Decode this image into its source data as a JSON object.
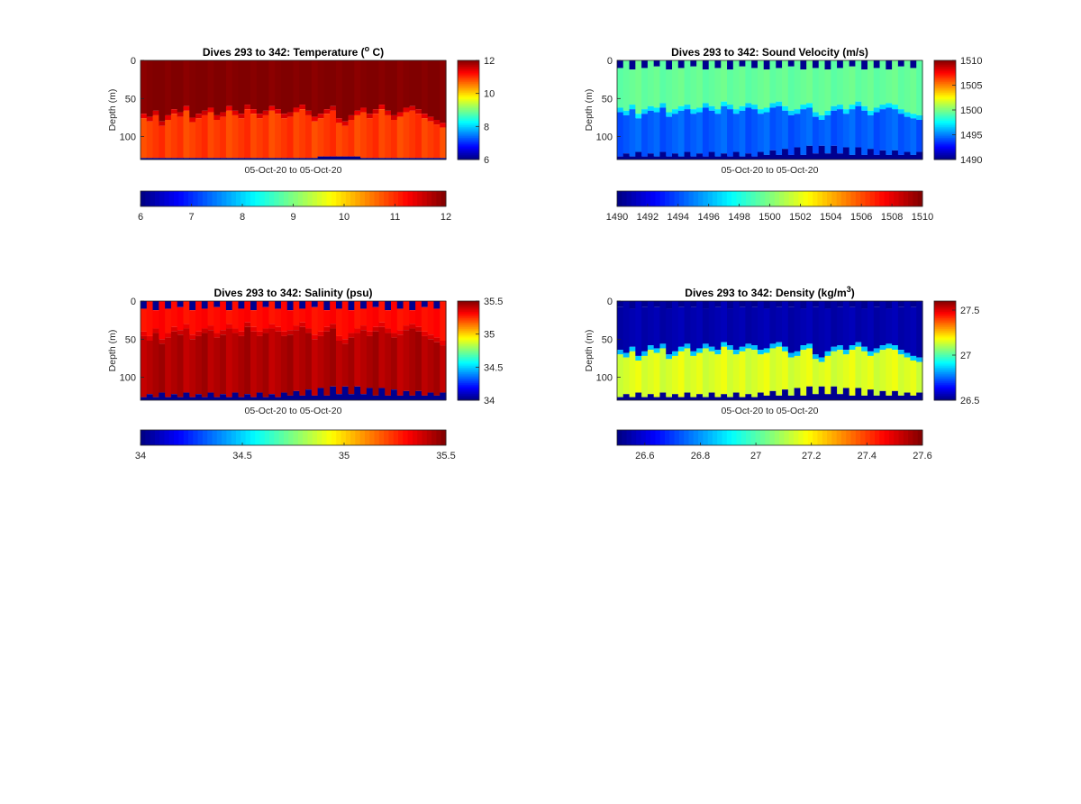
{
  "chart_data": [
    {
      "type": "heatmap",
      "title": {
        "text": "Dives 293 to 342: Temperature (",
        "sup": "o",
        "tail": " C)"
      },
      "xlabel": "05-Oct-20 to 05-Oct-20",
      "ylabel": "Depth (m)",
      "ylim": [
        0,
        130
      ],
      "yticks": [
        "0",
        "50",
        "100"
      ],
      "clim": [
        6,
        12
      ],
      "colormap": "jet",
      "side_colorbar_ticks": [
        {
          "value": 12,
          "label": "12"
        },
        {
          "value": 10,
          "label": "10"
        },
        {
          "value": 8,
          "label": "8"
        },
        {
          "value": 6,
          "label": "6"
        }
      ],
      "bottom_colorbar_ticks": [
        {
          "value": 6,
          "label": "6"
        },
        {
          "value": 7,
          "label": "7"
        },
        {
          "value": 8,
          "label": "8"
        },
        {
          "value": 9,
          "label": "9"
        },
        {
          "value": 10,
          "label": "10"
        },
        {
          "value": 11,
          "label": "11"
        },
        {
          "value": 12,
          "label": "12"
        }
      ],
      "n_dives": 50,
      "layers": {
        "upper_value": 12.0,
        "lower_value": 10.9,
        "interface_depth": [
          70,
          74,
          66,
          80,
          72,
          64,
          68,
          60,
          75,
          70,
          66,
          62,
          72,
          68,
          60,
          66,
          70,
          58,
          64,
          70,
          66,
          60,
          64,
          70,
          68,
          62,
          58,
          66,
          74,
          70,
          64,
          60,
          76,
          80,
          72,
          66,
          62,
          70,
          64,
          58,
          66,
          72,
          68,
          62,
          60,
          64,
          70,
          74,
          78,
          82
        ]
      },
      "bottom_depth": [
        128,
        128,
        128,
        128,
        128,
        128,
        128,
        128,
        128,
        128,
        128,
        128,
        128,
        128,
        128,
        128,
        128,
        128,
        128,
        128,
        128,
        128,
        128,
        128,
        128,
        128,
        128,
        128,
        128,
        126,
        126,
        126,
        126,
        126,
        126,
        126,
        128,
        128,
        128,
        128,
        128,
        128,
        128,
        128,
        128,
        128,
        128,
        128,
        128,
        128
      ]
    },
    {
      "type": "heatmap",
      "title": {
        "text": "Dives 293 to 342: Sound Velocity (m/s)"
      },
      "xlabel": "05-Oct-20 to 05-Oct-20",
      "ylabel": "Depth (m)",
      "ylim": [
        0,
        130
      ],
      "yticks": [
        "0",
        "50",
        "100"
      ],
      "clim": [
        1490,
        1510
      ],
      "colormap": "jet",
      "side_colorbar_ticks": [
        {
          "value": 1510,
          "label": "1510"
        },
        {
          "value": 1505,
          "label": "1505"
        },
        {
          "value": 1500,
          "label": "1500"
        },
        {
          "value": 1495,
          "label": "1495"
        },
        {
          "value": 1490,
          "label": "1490"
        }
      ],
      "bottom_colorbar_ticks": [
        {
          "value": 1490,
          "label": "1490"
        },
        {
          "value": 1492,
          "label": "1492"
        },
        {
          "value": 1494,
          "label": "1494"
        },
        {
          "value": 1496,
          "label": "1496"
        },
        {
          "value": 1498,
          "label": "1498"
        },
        {
          "value": 1500,
          "label": "1500"
        },
        {
          "value": 1502,
          "label": "1502"
        },
        {
          "value": 1504,
          "label": "1504"
        },
        {
          "value": 1506,
          "label": "1506"
        },
        {
          "value": 1508,
          "label": "1508"
        },
        {
          "value": 1510,
          "label": "1510"
        }
      ],
      "n_dives": 50,
      "layers": {
        "upper_value": 1499.5,
        "lower_value": 1494.3,
        "interface_depth": [
          62,
          66,
          58,
          70,
          64,
          60,
          62,
          56,
          68,
          64,
          60,
          58,
          64,
          62,
          56,
          60,
          64,
          54,
          58,
          64,
          60,
          56,
          58,
          64,
          62,
          56,
          54,
          60,
          66,
          64,
          58,
          56,
          68,
          72,
          66,
          60,
          58,
          64,
          58,
          54,
          60,
          66,
          62,
          58,
          56,
          58,
          64,
          68,
          70,
          72
        ]
      },
      "surface_gap": [
        10,
        0,
        12,
        0,
        10,
        0,
        8,
        0,
        12,
        0,
        10,
        0,
        8,
        0,
        12,
        0,
        10,
        0,
        12,
        0,
        8,
        0,
        10,
        0,
        12,
        0,
        10,
        0,
        8,
        0,
        12,
        0,
        10,
        0,
        12,
        0,
        10,
        0,
        8,
        0,
        12,
        0,
        10,
        0,
        12,
        0,
        8,
        0,
        10,
        0
      ],
      "bottom_depth": [
        126,
        122,
        126,
        120,
        126,
        122,
        126,
        120,
        126,
        122,
        126,
        120,
        126,
        122,
        126,
        120,
        126,
        122,
        126,
        120,
        126,
        122,
        126,
        120,
        124,
        118,
        124,
        116,
        124,
        114,
        124,
        112,
        122,
        112,
        122,
        112,
        122,
        114,
        124,
        114,
        124,
        116,
        124,
        118,
        124,
        118,
        124,
        120,
        124,
        120
      ]
    },
    {
      "type": "heatmap",
      "title": {
        "text": "Dives 293 to 342: Salinity (psu)"
      },
      "xlabel": "05-Oct-20 to 05-Oct-20",
      "ylabel": "Depth (m)",
      "ylim": [
        0,
        130
      ],
      "yticks": [
        "0",
        "50",
        "100"
      ],
      "clim": [
        34,
        35.5
      ],
      "colormap": "jet",
      "side_colorbar_ticks": [
        {
          "value": 35.5,
          "label": "35.5"
        },
        {
          "value": 35,
          "label": "35"
        },
        {
          "value": 34.5,
          "label": "34.5"
        },
        {
          "value": 34,
          "label": "34"
        }
      ],
      "bottom_colorbar_ticks": [
        {
          "value": 34,
          "label": "34"
        },
        {
          "value": 34.5,
          "label": "34.5"
        },
        {
          "value": 35,
          "label": "35"
        },
        {
          "value": 35.5,
          "label": "35.5"
        }
      ],
      "n_dives": 50,
      "layers": {
        "upper_value": 35.3,
        "lower_value": 35.43,
        "interface_depth": [
          40,
          46,
          36,
          50,
          42,
          34,
          38,
          30,
          44,
          40,
          36,
          32,
          42,
          38,
          30,
          36,
          40,
          28,
          34,
          40,
          36,
          30,
          34,
          40,
          38,
          32,
          28,
          36,
          44,
          40,
          34,
          30,
          46,
          50,
          42,
          36,
          32,
          40,
          34,
          28,
          36,
          42,
          38,
          32,
          30,
          34,
          40,
          44,
          48,
          52
        ]
      },
      "surface_gap": [
        10,
        0,
        12,
        0,
        10,
        0,
        8,
        0,
        12,
        0,
        10,
        0,
        8,
        0,
        12,
        0,
        10,
        0,
        12,
        0,
        8,
        0,
        10,
        0,
        12,
        0,
        10,
        0,
        8,
        0,
        12,
        0,
        10,
        0,
        12,
        0,
        10,
        0,
        8,
        0,
        12,
        0,
        10,
        0,
        12,
        0,
        8,
        0,
        10,
        0
      ],
      "bottom_depth": [
        126,
        122,
        126,
        120,
        126,
        122,
        126,
        120,
        126,
        122,
        126,
        120,
        126,
        122,
        126,
        120,
        126,
        122,
        126,
        120,
        126,
        122,
        126,
        120,
        124,
        118,
        124,
        116,
        124,
        114,
        124,
        112,
        122,
        112,
        122,
        112,
        122,
        114,
        124,
        114,
        124,
        116,
        124,
        118,
        124,
        118,
        124,
        120,
        124,
        120
      ]
    },
    {
      "type": "heatmap",
      "title": {
        "text": "Dives 293 to 342: Density (kg/m",
        "sup": "3",
        "tail": ")"
      },
      "xlabel": "05-Oct-20 to 05-Oct-20",
      "ylabel": "Depth (m)",
      "ylim": [
        0,
        130
      ],
      "yticks": [
        "0",
        "50",
        "100"
      ],
      "clim": [
        26.5,
        27.6
      ],
      "colormap": "jet",
      "side_colorbar_ticks": [
        {
          "value": 27.5,
          "label": "27.5"
        },
        {
          "value": 27,
          "label": "27"
        },
        {
          "value": 26.5,
          "label": "26.5"
        }
      ],
      "bottom_colorbar_ticks": [
        {
          "value": 26.6,
          "label": "26.6"
        },
        {
          "value": 26.8,
          "label": "26.8"
        },
        {
          "value": 27,
          "label": "27"
        },
        {
          "value": 27.2,
          "label": "27.2"
        },
        {
          "value": 27.4,
          "label": "27.4"
        },
        {
          "value": 27.6,
          "label": "27.6"
        }
      ],
      "n_dives": 50,
      "layers": {
        "upper_value": 26.55,
        "lower_value": 27.15,
        "interface_depth": [
          64,
          68,
          60,
          72,
          66,
          58,
          62,
          56,
          70,
          66,
          60,
          56,
          66,
          62,
          56,
          60,
          64,
          54,
          58,
          64,
          60,
          56,
          58,
          64,
          62,
          56,
          54,
          60,
          68,
          66,
          58,
          56,
          70,
          74,
          66,
          60,
          58,
          64,
          58,
          54,
          60,
          66,
          62,
          58,
          56,
          58,
          64,
          68,
          72,
          74
        ]
      },
      "surface_gap": [
        8,
        0,
        10,
        0,
        8,
        0,
        8,
        0,
        10,
        0,
        8,
        0,
        8,
        0,
        10,
        0,
        8,
        0,
        10,
        0,
        8,
        0,
        8,
        0,
        10,
        0,
        8,
        0,
        8,
        0,
        10,
        0,
        8,
        0,
        10,
        0,
        8,
        0,
        8,
        0,
        10,
        0,
        8,
        0,
        10,
        0,
        8,
        0,
        8,
        0
      ],
      "bottom_depth": [
        126,
        122,
        126,
        120,
        126,
        122,
        126,
        120,
        126,
        122,
        126,
        120,
        126,
        122,
        126,
        120,
        126,
        122,
        126,
        120,
        126,
        122,
        126,
        120,
        124,
        118,
        124,
        116,
        124,
        114,
        124,
        112,
        122,
        112,
        122,
        112,
        122,
        114,
        124,
        114,
        124,
        116,
        124,
        118,
        124,
        118,
        124,
        120,
        124,
        120
      ]
    }
  ]
}
